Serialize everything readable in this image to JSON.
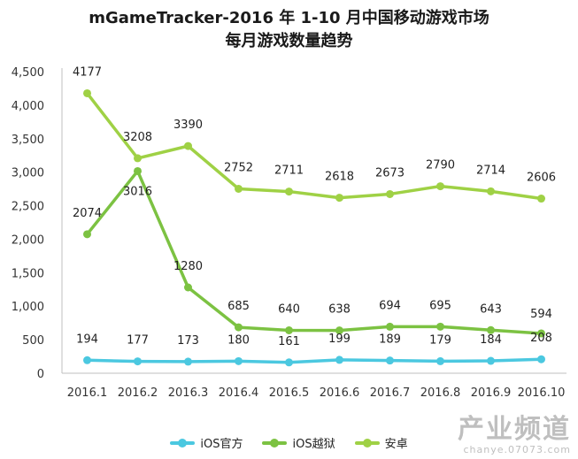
{
  "chart_data": {
    "type": "line",
    "title": "mGameTracker-2016 年 1-10 月中国移动游戏市场",
    "subtitle": "每月游戏数量趋势",
    "categories": [
      "2016.1",
      "2016.2",
      "2016.3",
      "2016.4",
      "2016.5",
      "2016.6",
      "2016.7",
      "2016.8",
      "2016.9",
      "2016.10"
    ],
    "ylim": [
      0,
      4500
    ],
    "yticks": [
      0,
      500,
      1000,
      1500,
      2000,
      2500,
      3000,
      3500,
      4000,
      4500
    ],
    "ytick_labels": [
      "0",
      "500",
      "1,000",
      "1,500",
      "2,000",
      "2,500",
      "3,000",
      "3,500",
      "4,000",
      "4,500"
    ],
    "grid": false,
    "legend_position": "bottom",
    "series": [
      {
        "name": "iOS官方",
        "color": "#4bc8e0",
        "values": [
          194,
          177,
          173,
          180,
          161,
          199,
          189,
          179,
          184,
          208
        ]
      },
      {
        "name": "iOS越狱",
        "color": "#7cc242",
        "values": [
          2074,
          3016,
          1280,
          685,
          640,
          638,
          694,
          695,
          643,
          594
        ]
      },
      {
        "name": "安卓",
        "color": "#9fd145",
        "values": [
          4177,
          3208,
          3390,
          2752,
          2711,
          2618,
          2673,
          2790,
          2714,
          2606
        ]
      }
    ]
  },
  "watermark": {
    "main": "产业频道",
    "sub": "chanye.07073.com"
  }
}
